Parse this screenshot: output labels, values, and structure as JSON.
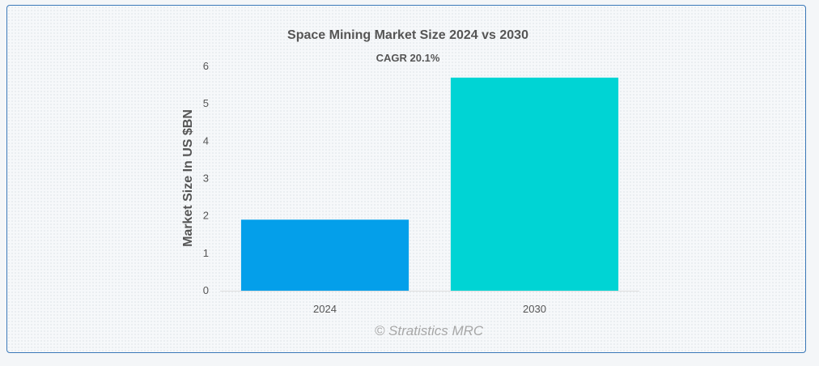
{
  "chart_data": {
    "type": "bar",
    "title": "Space Mining Market Size 2024 vs 2030",
    "subtitle": "CAGR 20.1%",
    "xlabel": "",
    "ylabel": "Market Size In US $BN",
    "categories": [
      "2024",
      "2030"
    ],
    "values": [
      1.9,
      5.7
    ],
    "ylim": [
      0,
      6
    ],
    "yticks": [
      "0",
      "1",
      "2",
      "3",
      "4",
      "5",
      "6"
    ],
    "grid": false,
    "legend": "none",
    "colors": [
      "#049fea",
      "#00d4d4"
    ]
  },
  "watermark": "© Stratistics MRC"
}
